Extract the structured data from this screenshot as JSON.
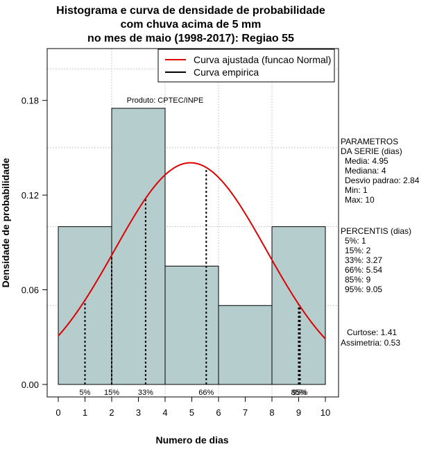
{
  "chart_data": {
    "type": "bar",
    "title_lines": [
      "Histograma e curva de densidade de probabilidade",
      "com chuva acima de 5 mm",
      "no mes de maio (1998-2017): Regiao 55"
    ],
    "xlabel": "Numero de dias",
    "ylabel": "Densidade de probabilidade",
    "xlim": [
      0,
      10
    ],
    "ylim": [
      0,
      0.2
    ],
    "x_ticks": [
      "0",
      "1",
      "2",
      "3",
      "4",
      "5",
      "6",
      "7",
      "8",
      "9",
      "10"
    ],
    "y_ticks": [
      "0.00",
      "0.06",
      "0.12",
      "0.18"
    ],
    "bins": [
      {
        "start": 0,
        "end": 2,
        "density": 0.1
      },
      {
        "start": 2,
        "end": 4,
        "density": 0.175
      },
      {
        "start": 4,
        "end": 6,
        "density": 0.075
      },
      {
        "start": 6,
        "end": 8,
        "density": 0.05
      },
      {
        "start": 8,
        "end": 10,
        "density": 0.1
      }
    ],
    "normal_curve": {
      "mean": 4.95,
      "sd": 2.84,
      "color": "#dd0000"
    },
    "bar_fill": "#b6cdcd",
    "percentile_lines": [
      {
        "label": "5%",
        "value": 1
      },
      {
        "label": "15%",
        "value": 2
      },
      {
        "label": "33%",
        "value": 3.27
      },
      {
        "label": "66%",
        "value": 5.54
      },
      {
        "label": "85%",
        "value": 9
      },
      {
        "label": "95%",
        "value": 9.05
      }
    ],
    "producer_note": "Produto: CPTEC/INPE",
    "legend": [
      {
        "label": "Curva ajustada (funcao Normal)",
        "color": "#dd0000"
      },
      {
        "label": "Curva empirica",
        "color": "#000000"
      }
    ],
    "legend_position": "top-right"
  },
  "side_panel": {
    "params_header": [
      "PARAMETROS",
      "DA SERIE (dias)"
    ],
    "params": [
      "Media: 4.95",
      "Mediana: 4",
      "Desvio padrao: 2.84",
      "Min: 1",
      "Max: 10"
    ],
    "percentis_header": "PERCENTIS (dias)",
    "percentis": [
      "5%: 1",
      "15%: 2",
      "33%: 3.27",
      "66%: 5.54",
      "85%: 9",
      "95%: 9.05"
    ],
    "shape": [
      "Curtose: 1.41",
      "Assimetria: 0.53"
    ]
  }
}
